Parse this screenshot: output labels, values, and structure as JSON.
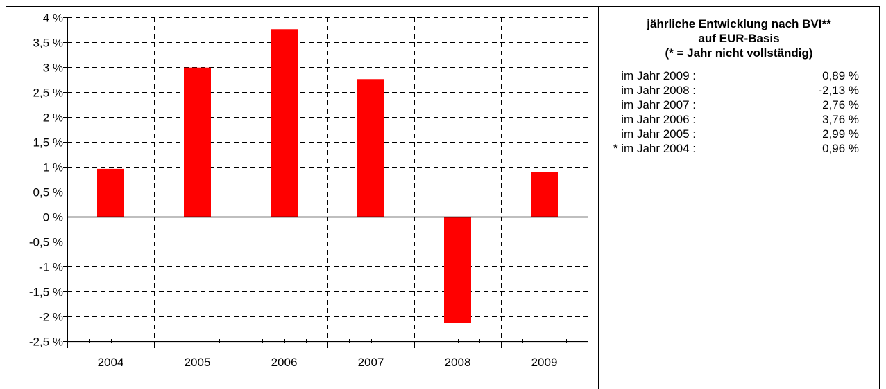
{
  "chart_data": {
    "type": "bar",
    "categories": [
      "2004",
      "2005",
      "2006",
      "2007",
      "2008",
      "2009"
    ],
    "values": [
      0.96,
      2.99,
      3.76,
      2.76,
      -2.13,
      0.89
    ],
    "ylim": [
      -2.5,
      4
    ],
    "yticks": [
      {
        "v": 4,
        "label": "4 %"
      },
      {
        "v": 3.5,
        "label": "3,5 %"
      },
      {
        "v": 3,
        "label": "3 %"
      },
      {
        "v": 2.5,
        "label": "2,5 %"
      },
      {
        "v": 2,
        "label": "2 %"
      },
      {
        "v": 1.5,
        "label": "1,5 %"
      },
      {
        "v": 1,
        "label": "1 %"
      },
      {
        "v": 0.5,
        "label": "0,5 %"
      },
      {
        "v": 0,
        "label": "0 %"
      },
      {
        "v": -0.5,
        "label": "-0,5 %"
      },
      {
        "v": -1,
        "label": "-1 %"
      },
      {
        "v": -1.5,
        "label": "-1,5 %"
      },
      {
        "v": -2,
        "label": "-2 %"
      },
      {
        "v": -2.5,
        "label": "-2,5 %"
      }
    ],
    "grid": true,
    "bar_color": "#ff0000"
  },
  "summary": {
    "title_line1": "jährliche Entwicklung nach BVI**",
    "title_line2": "auf EUR-Basis",
    "title_line3": "(* = Jahr nicht vollständig)",
    "rows": [
      {
        "label": "im Jahr 2009 :",
        "value": "0,89 %"
      },
      {
        "label": "im Jahr 2008 :",
        "value": "-2,13 %"
      },
      {
        "label": "im Jahr 2007 :",
        "value": "2,76 %"
      },
      {
        "label": "im Jahr 2006 :",
        "value": "3,76 %"
      },
      {
        "label": "im Jahr 2005 :",
        "value": "2,99 %"
      },
      {
        "label": "* im Jahr 2004 :",
        "value": "0,96 %"
      }
    ]
  }
}
